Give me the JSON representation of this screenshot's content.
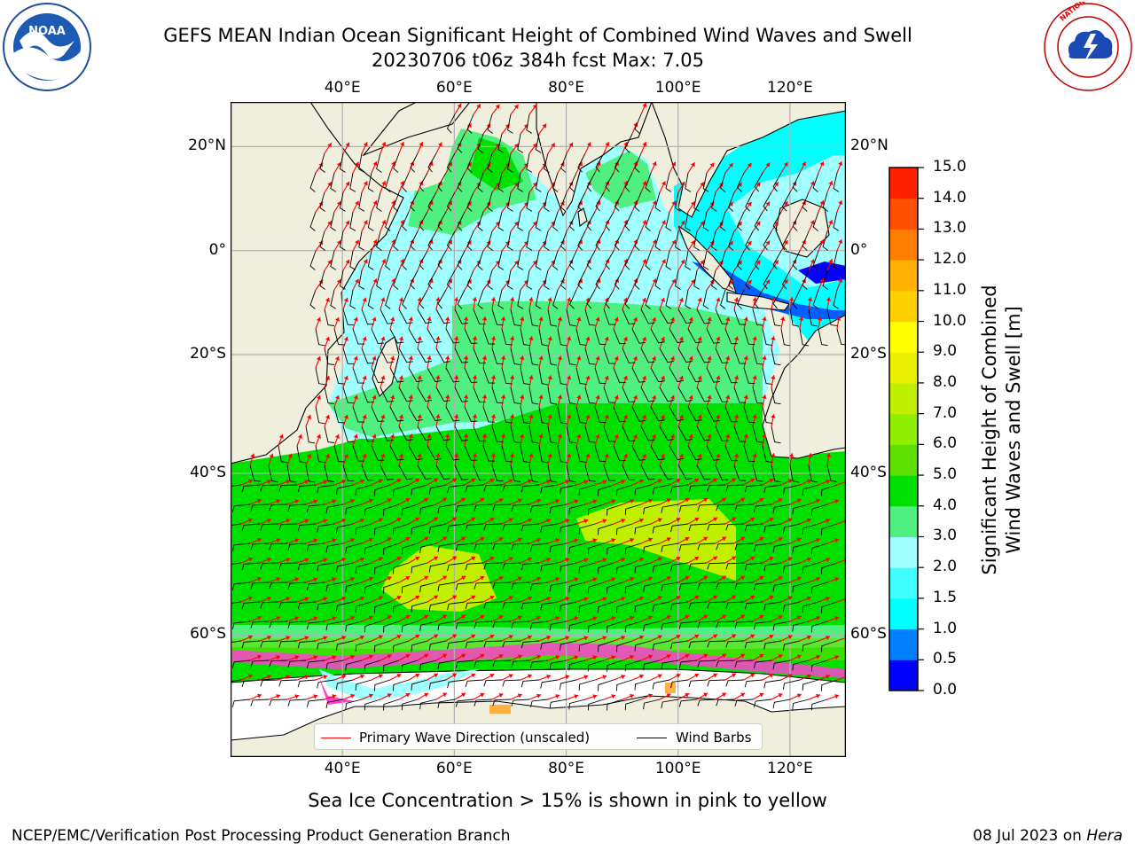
{
  "title": {
    "line1": "GEFS MEAN Indian Ocean Significant Height of Combined Wind Waves and Swell",
    "line2": "20230706 t06z 384h fcst   Max: 7.05"
  },
  "logos": {
    "left": {
      "name": "noaa-logo",
      "text": "NOAA"
    },
    "right": {
      "name": "nws-logo",
      "text": "NATIONAL WEATHER SERVICE"
    }
  },
  "axes": {
    "lon_labels": [
      "40°E",
      "60°E",
      "80°E",
      "100°E",
      "120°E"
    ],
    "lon_values": [
      40,
      60,
      80,
      100,
      120
    ],
    "lat_labels": [
      "20°N",
      "0°",
      "20°S",
      "40°S",
      "60°S"
    ],
    "lat_values": [
      20,
      0,
      -20,
      -40,
      -60
    ],
    "lon_range": [
      20,
      130
    ],
    "lat_range": [
      -70,
      28
    ],
    "grid": true
  },
  "colorbar": {
    "title_line1": "Significant Height of Combined",
    "title_line2": "Wind Waves and Swell [m]",
    "tick_labels": [
      "15.0",
      "14.0",
      "13.0",
      "12.0",
      "11.0",
      "10.0",
      "9.0",
      "8.0",
      "7.0",
      "6.0",
      "5.0",
      "4.0",
      "3.0",
      "2.0",
      "1.5",
      "1.0",
      "0.5",
      "0.0"
    ],
    "colors": [
      "#0000ff",
      "#0080ff",
      "#00ffff",
      "#40ffff",
      "#a0ffff",
      "#50f080",
      "#00e000",
      "#60e000",
      "#90ee00",
      "#c0f000",
      "#e8f000",
      "#ffff00",
      "#ffd000",
      "#ffb000",
      "#ff8000",
      "#ff5000",
      "#ff2000"
    ]
  },
  "colors": {
    "land": "#f0eedc",
    "ice_land": "#ffffff",
    "wave_arrow": "#ff0000",
    "wind_barb": "#000000",
    "sea_ice": "#ff40d0"
  },
  "legend": {
    "wave_label": "Primary Wave Direction (unscaled)",
    "barb_label": "Wind Barbs"
  },
  "caption": "Sea Ice Concentration > 15% is shown in pink to yellow",
  "footer": {
    "left": "NCEP/EMC/Verification Post Processing Product Generation Branch",
    "right_date": "08 Jul 2023 on ",
    "right_host": "Hera"
  }
}
